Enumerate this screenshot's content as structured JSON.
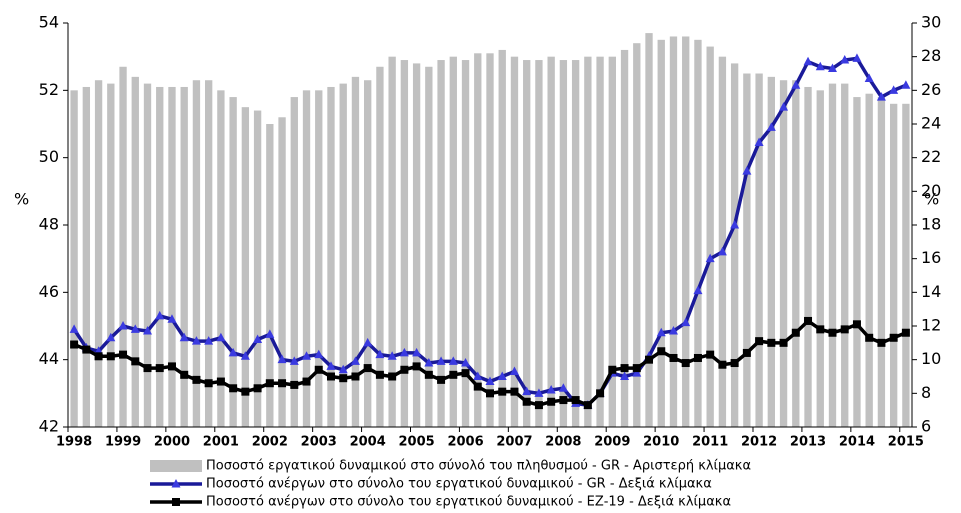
{
  "chart_data": {
    "type": "bar_line",
    "categories": [
      "1998",
      null,
      null,
      null,
      "1999",
      null,
      null,
      null,
      "2000",
      null,
      null,
      null,
      "2001",
      null,
      null,
      null,
      "2002",
      null,
      null,
      null,
      "2003",
      null,
      null,
      null,
      "2004",
      null,
      null,
      null,
      "2005",
      null,
      null,
      null,
      "2006",
      null,
      null,
      null,
      "2007",
      null,
      null,
      null,
      "2008",
      null,
      null,
      null,
      "2009",
      null,
      null,
      null,
      "2010",
      null,
      null,
      null,
      "2011",
      null,
      null,
      null,
      "2012",
      null,
      null,
      null,
      "2013",
      null,
      null,
      null,
      "2014",
      null,
      null,
      null,
      "2015"
    ],
    "ylabel": "%",
    "y2label": "%",
    "ylim": [
      42,
      54
    ],
    "yticks": [
      42,
      44,
      46,
      48,
      50,
      52,
      54
    ],
    "y2lim": [
      6,
      30
    ],
    "y2ticks": [
      6,
      8,
      10,
      12,
      14,
      16,
      18,
      20,
      22,
      24,
      26,
      28,
      30
    ],
    "series": [
      {
        "name": "Ποσοστό εργατικού δυναμικού στο σύνολό του πληθυσμού - GR - Αριστερή κλίμακα",
        "color": "#c0c0c0",
        "kind": "bar",
        "values": [
          52.0,
          52.1,
          52.3,
          52.2,
          52.7,
          52.4,
          52.2,
          52.1,
          52.1,
          52.1,
          52.3,
          52.3,
          52.0,
          51.8,
          51.5,
          51.4,
          51.0,
          51.2,
          51.8,
          52.0,
          52.0,
          52.1,
          52.2,
          52.4,
          52.3,
          52.7,
          53.0,
          52.9,
          52.8,
          52.7,
          52.9,
          53.0,
          52.9,
          53.1,
          53.1,
          53.2,
          53.0,
          52.9,
          52.9,
          53.0,
          52.9,
          52.9,
          53.0,
          53.0,
          53.0,
          53.2,
          53.4,
          53.7,
          53.5,
          53.6,
          53.6,
          53.5,
          53.3,
          53.0,
          52.8,
          52.5,
          52.5,
          52.4,
          52.3,
          52.3,
          52.1,
          52.0,
          52.2,
          52.2,
          51.8,
          51.9,
          51.8,
          51.6,
          51.6
        ]
      },
      {
        "name": "Ποσοστό ανέργων στο σύνολο του εργατικού δυναμικού - GR - Δεξιά κλίμακα",
        "color": "#1a1a99",
        "marker_color": "#3a3ae0",
        "marker": "triangle",
        "kind": "line",
        "axis": "y2",
        "values": [
          11.8,
          10.7,
          10.5,
          11.3,
          12.0,
          11.8,
          11.7,
          12.6,
          12.4,
          11.3,
          11.1,
          11.1,
          11.3,
          10.4,
          10.2,
          11.2,
          11.5,
          10.0,
          9.9,
          10.2,
          10.3,
          9.6,
          9.4,
          9.9,
          11.0,
          10.3,
          10.2,
          10.4,
          10.4,
          9.8,
          9.9,
          9.9,
          9.8,
          9.0,
          8.7,
          9.0,
          9.3,
          8.1,
          8.0,
          8.2,
          8.3,
          7.4,
          7.3,
          8.0,
          9.2,
          9.0,
          9.2,
          10.2,
          11.6,
          11.7,
          12.2,
          14.1,
          16.0,
          16.4,
          18.0,
          21.2,
          22.9,
          23.8,
          25.0,
          26.3,
          27.7,
          27.4,
          27.3,
          27.8,
          27.9,
          26.7,
          25.6,
          26.0,
          26.3
        ]
      },
      {
        "name": "Ποσοστό ανέργων στο σύνολο του εργατικού δυναμικού - ΕΖ-19 - Δεξιά κλίμακα",
        "color": "#000000",
        "marker_color": "#000000",
        "marker": "square",
        "kind": "line",
        "axis": "y2",
        "values": [
          10.9,
          10.6,
          10.2,
          10.2,
          10.3,
          9.9,
          9.5,
          9.5,
          9.6,
          9.1,
          8.8,
          8.6,
          8.7,
          8.3,
          8.1,
          8.3,
          8.6,
          8.6,
          8.5,
          8.7,
          9.4,
          9.0,
          8.9,
          9.0,
          9.5,
          9.1,
          9.0,
          9.4,
          9.6,
          9.1,
          8.8,
          9.1,
          9.2,
          8.4,
          8.0,
          8.1,
          8.1,
          7.5,
          7.3,
          7.5,
          7.6,
          7.6,
          7.3,
          8.0,
          9.4,
          9.5,
          9.5,
          10.0,
          10.5,
          10.1,
          9.8,
          10.1,
          10.3,
          9.7,
          9.8,
          10.4,
          11.1,
          11.0,
          11.0,
          11.6,
          12.3,
          11.8,
          11.6,
          11.8,
          12.1,
          11.3,
          11.0,
          11.3,
          11.6
        ]
      }
    ],
    "legend": "bottom"
  }
}
